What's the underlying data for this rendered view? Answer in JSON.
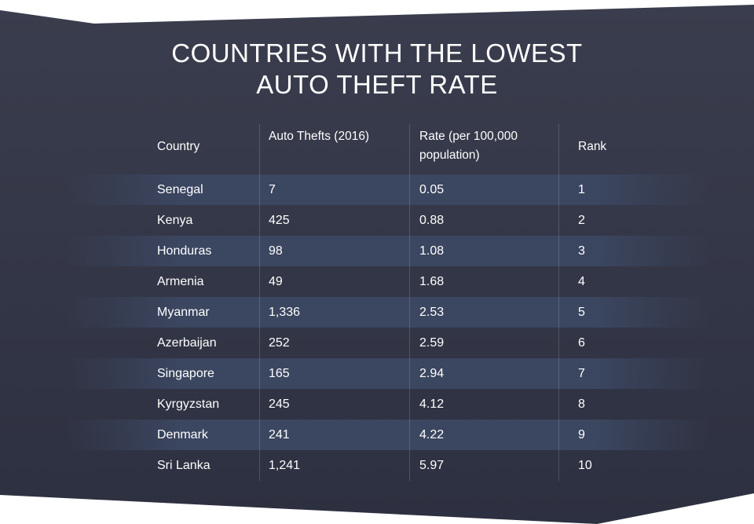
{
  "colors": {
    "panel": "#2f3241",
    "panel_top": "#3a3d4d",
    "row_highlight": "#3b4660",
    "text": "#ffffff"
  },
  "chart_data": {
    "type": "table",
    "title_lines": [
      "COUNTRIES WITH THE LOWEST",
      "AUTO THEFT RATE"
    ],
    "columns": [
      "Country",
      "Auto Thefts (2016)",
      "Rate (per 100,000 population)",
      "Rank"
    ],
    "header_lines": [
      [
        "Country"
      ],
      [
        "Auto Thefts (2016)"
      ],
      [
        "Rate (per 100,000",
        "population)"
      ],
      [
        "Rank"
      ]
    ],
    "rows": [
      [
        "Senegal",
        "7",
        "0.05",
        "1"
      ],
      [
        "Kenya",
        "425",
        "0.88",
        "2"
      ],
      [
        "Honduras",
        "98",
        "1.08",
        "3"
      ],
      [
        "Armenia",
        "49",
        "1.68",
        "4"
      ],
      [
        "Myanmar",
        "1,336",
        "2.53",
        "5"
      ],
      [
        "Azerbaijan",
        "252",
        "2.59",
        "6"
      ],
      [
        "Singapore",
        "165",
        "2.94",
        "7"
      ],
      [
        "Kyrgyzstan",
        "245",
        "4.12",
        "8"
      ],
      [
        "Denmark",
        "241",
        "4.22",
        "9"
      ],
      [
        "Sri Lanka",
        "1,241",
        "5.97",
        "10"
      ]
    ]
  }
}
